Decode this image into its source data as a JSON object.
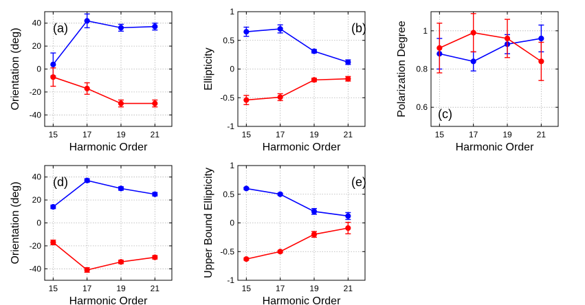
{
  "colors": {
    "blue": "#0000ff",
    "red": "#ff0000",
    "grid": "#b0b0b0",
    "axis": "#000000"
  },
  "chart_data": [
    {
      "type": "line",
      "panel_label": "(a)",
      "xlabel": "Harmonic Order",
      "ylabel": "Orientation (deg)",
      "x": [
        15,
        17,
        19,
        21
      ],
      "xticks": [
        "15",
        "17",
        "19",
        "21"
      ],
      "xlim": [
        14.5,
        22
      ],
      "ylim": [
        -50,
        50
      ],
      "yticks": [
        "-40",
        "-20",
        "0",
        "20",
        "40"
      ],
      "ytick_values": [
        -40,
        -20,
        0,
        20,
        40
      ],
      "grid": true,
      "series": [
        {
          "color": "blue",
          "values": [
            4,
            42,
            36,
            37
          ],
          "errors": [
            10,
            6,
            3,
            3
          ]
        },
        {
          "color": "red",
          "values": [
            -7,
            -17,
            -30,
            -30
          ],
          "errors": [
            8,
            5,
            3,
            3
          ]
        }
      ]
    },
    {
      "type": "line",
      "panel_label": "(b)",
      "xlabel": "Harmonic Order",
      "ylabel": "Ellipticity",
      "x": [
        15,
        17,
        19,
        21
      ],
      "xticks": [
        "15",
        "17",
        "19",
        "21"
      ],
      "xlim": [
        14.5,
        22
      ],
      "ylim": [
        -1,
        1
      ],
      "yticks": [
        "-1",
        "-0.5",
        "0",
        "0.5",
        "1"
      ],
      "ytick_values": [
        -1,
        -0.5,
        0,
        0.5,
        1
      ],
      "grid": true,
      "series": [
        {
          "color": "blue",
          "values": [
            0.65,
            0.7,
            0.31,
            0.12
          ],
          "errors": [
            0.08,
            0.07,
            0.03,
            0.04
          ]
        },
        {
          "color": "red",
          "values": [
            -0.54,
            -0.49,
            -0.19,
            -0.17
          ],
          "errors": [
            0.08,
            0.06,
            0.03,
            0.04
          ]
        }
      ]
    },
    {
      "type": "line",
      "panel_label": "(c)",
      "xlabel": "Harmonic Order",
      "ylabel": "Polarization Degree",
      "x": [
        15,
        17,
        19,
        21
      ],
      "xticks": [
        "15",
        "17",
        "19",
        "21"
      ],
      "xlim": [
        14.5,
        22
      ],
      "ylim": [
        0.5,
        1.1
      ],
      "yticks": [
        "0.6",
        "0.8",
        "1"
      ],
      "ytick_values": [
        0.6,
        0.8,
        1.0
      ],
      "grid": true,
      "series": [
        {
          "color": "blue",
          "values": [
            0.88,
            0.84,
            0.93,
            0.96
          ],
          "errors": [
            0.08,
            0.05,
            0.05,
            0.07
          ]
        },
        {
          "color": "red",
          "values": [
            0.91,
            0.99,
            0.96,
            0.84
          ],
          "errors": [
            0.13,
            0.1,
            0.1,
            0.1
          ]
        }
      ]
    },
    {
      "type": "line",
      "panel_label": "(d)",
      "xlabel": "Harmonic Order",
      "ylabel": "Orientation (deg)",
      "x": [
        15,
        17,
        19,
        21
      ],
      "xticks": [
        "15",
        "17",
        "19",
        "21"
      ],
      "xlim": [
        14.5,
        22
      ],
      "ylim": [
        -50,
        50
      ],
      "yticks": [
        "-40",
        "-20",
        "0",
        "20",
        "40"
      ],
      "ytick_values": [
        -40,
        -20,
        0,
        20,
        40
      ],
      "grid": true,
      "series": [
        {
          "color": "blue",
          "values": [
            14,
            37,
            30,
            25
          ],
          "errors": [
            1.5,
            1.5,
            1.5,
            1.5
          ]
        },
        {
          "color": "red",
          "values": [
            -17,
            -41,
            -34,
            -30
          ],
          "errors": [
            2,
            2,
            1.5,
            1.5
          ]
        }
      ]
    },
    {
      "type": "line",
      "panel_label": "(e)",
      "xlabel": "Harmonic Order",
      "ylabel": "Upper Bound Ellipticity",
      "x": [
        15,
        17,
        19,
        21
      ],
      "xticks": [
        "15",
        "17",
        "19",
        "21"
      ],
      "xlim": [
        14.5,
        22
      ],
      "ylim": [
        -1,
        1
      ],
      "yticks": [
        "-1",
        "-0.5",
        "0",
        "0.5",
        "1"
      ],
      "ytick_values": [
        -1,
        -0.5,
        0,
        0.5,
        1
      ],
      "grid": true,
      "series": [
        {
          "color": "blue",
          "values": [
            0.6,
            0.5,
            0.2,
            0.12
          ],
          "errors": [
            0.02,
            0.02,
            0.05,
            0.06
          ]
        },
        {
          "color": "red",
          "values": [
            -0.63,
            -0.5,
            -0.2,
            -0.09
          ],
          "errors": [
            0.02,
            0.02,
            0.05,
            0.1
          ]
        }
      ]
    }
  ]
}
